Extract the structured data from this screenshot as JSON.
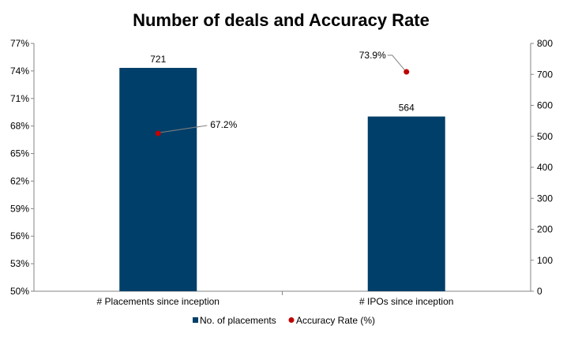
{
  "chart_data": {
    "type": "bar",
    "title": "Number of deals and Accuracy Rate",
    "categories": [
      "# Placements since inception",
      "# IPOs since inception"
    ],
    "series": [
      {
        "name": "No. of placements",
        "kind": "bar",
        "axis": "right",
        "values": [
          721,
          564
        ],
        "labels": [
          "721",
          "564"
        ],
        "color": "#003F69"
      },
      {
        "name": "Accuracy Rate (%)",
        "kind": "scatter",
        "axis": "left",
        "values": [
          67.2,
          73.9
        ],
        "labels": [
          "67.2%",
          "73.9%"
        ],
        "color": "#C00000"
      }
    ],
    "y_left": {
      "min": 50,
      "max": 77,
      "ticks": [
        "50%",
        "53%",
        "56%",
        "59%",
        "62%",
        "65%",
        "68%",
        "71%",
        "74%",
        "77%"
      ]
    },
    "y_right": {
      "min": 0,
      "max": 800,
      "ticks": [
        "0",
        "100",
        "200",
        "300",
        "400",
        "500",
        "600",
        "700",
        "800"
      ]
    },
    "grid": false,
    "legend_position": "bottom"
  }
}
